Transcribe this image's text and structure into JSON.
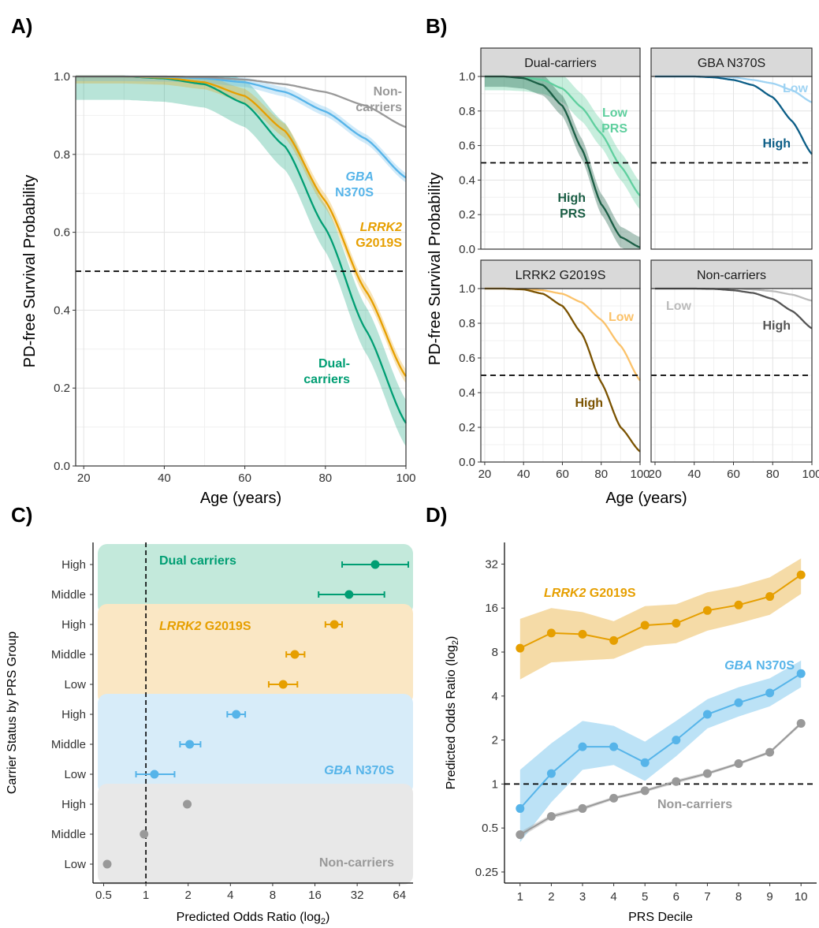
{
  "figure": {
    "colors": {
      "noncarriers": "#999999",
      "gba": "#56B4E9",
      "lrrk2": "#E69F00",
      "dual": "#009E73",
      "dual_high": "#1b5e45",
      "dual_low": "#5fcf9e",
      "gba_high": "#0b5d86",
      "gba_low": "#9fd3f3",
      "lrrk2_high": "#7a5200",
      "lrrk2_low": "#fbc26a",
      "non_high": "#555555",
      "non_low": "#bbbbbb"
    }
  },
  "chart_data": [
    {
      "panel": "A)",
      "type": "line",
      "xlabel": "Age (years)",
      "ylabel": "PD-free Survival Probability",
      "xlim": [
        18,
        100
      ],
      "ylim": [
        0,
        1
      ],
      "xticks": [
        "20",
        "40",
        "60",
        "80",
        "100"
      ],
      "yticks": [
        "0.0",
        "0.2",
        "0.4",
        "0.6",
        "0.8",
        "1.0"
      ],
      "reference_line": 0.5,
      "grid": true,
      "series": [
        {
          "key": "noncarriers",
          "label_lines": [
            "Non-",
            "carriers"
          ],
          "ages": [
            18,
            30,
            40,
            50,
            60,
            70,
            80,
            90,
            100
          ],
          "values": [
            1.0,
            1.0,
            1.0,
            0.998,
            0.992,
            0.98,
            0.96,
            0.925,
            0.87
          ],
          "band": 0.0
        },
        {
          "key": "gba",
          "label_lines": [
            "GBA",
            "N370S"
          ],
          "italic_first": true,
          "ages": [
            18,
            30,
            40,
            50,
            60,
            70,
            80,
            90,
            100
          ],
          "values": [
            1.0,
            1.0,
            0.999,
            0.995,
            0.985,
            0.96,
            0.91,
            0.84,
            0.74
          ],
          "band": 0.012
        },
        {
          "key": "lrrk2",
          "label_lines": [
            "LRRK2",
            "G2019S"
          ],
          "italic_first": true,
          "ages": [
            18,
            30,
            40,
            50,
            60,
            70,
            80,
            90,
            100
          ],
          "values": [
            1.0,
            1.0,
            0.997,
            0.985,
            0.95,
            0.86,
            0.68,
            0.45,
            0.23
          ],
          "band": 0.018
        },
        {
          "key": "dual",
          "label_lines": [
            "Dual-",
            "carriers"
          ],
          "ages": [
            18,
            30,
            40,
            50,
            60,
            70,
            80,
            90,
            100
          ],
          "values": [
            1.0,
            1.0,
            0.995,
            0.98,
            0.93,
            0.82,
            0.61,
            0.35,
            0.11
          ],
          "band": 0.06
        }
      ]
    },
    {
      "panel": "B)",
      "type": "line",
      "xlabel": "Age (years)",
      "ylabel": "PD-free Survival Probability",
      "xlim": [
        18,
        100
      ],
      "ylim": [
        0,
        1
      ],
      "xticks": [
        "20",
        "40",
        "60",
        "80",
        "100"
      ],
      "yticks": [
        "0.0",
        "0.2",
        "0.4",
        "0.6",
        "0.8",
        "1.0"
      ],
      "reference_line": 0.5,
      "facets": [
        {
          "title": "Dual-carriers",
          "series": [
            {
              "label_lines": [
                "Low",
                "PRS"
              ],
              "color_key": "dual_low",
              "ages": [
                20,
                30,
                40,
                50,
                60,
                70,
                80,
                90,
                100
              ],
              "values": [
                1.0,
                1.0,
                0.995,
                0.98,
                0.93,
                0.82,
                0.67,
                0.48,
                0.31
              ],
              "band": 0.08
            },
            {
              "label_lines": [
                "High",
                "PRS"
              ],
              "color_key": "dual_high",
              "ages": [
                20,
                30,
                40,
                50,
                60,
                70,
                80,
                90,
                100
              ],
              "values": [
                1.0,
                1.0,
                0.99,
                0.95,
                0.83,
                0.58,
                0.26,
                0.07,
                0.01
              ],
              "band": 0.06
            }
          ]
        },
        {
          "title": "GBA N370S",
          "series": [
            {
              "label_lines": [
                "Low"
              ],
              "color_key": "gba_low",
              "ages": [
                20,
                30,
                40,
                50,
                60,
                70,
                80,
                90,
                100
              ],
              "values": [
                1.0,
                1.0,
                1.0,
                1.0,
                0.995,
                0.98,
                0.96,
                0.92,
                0.85
              ],
              "band": 0.0
            },
            {
              "label_lines": [
                "High"
              ],
              "color_key": "gba_high",
              "ages": [
                20,
                30,
                40,
                50,
                60,
                70,
                80,
                90,
                100
              ],
              "values": [
                1.0,
                1.0,
                1.0,
                0.995,
                0.98,
                0.95,
                0.88,
                0.74,
                0.55
              ],
              "band": 0.0
            }
          ]
        },
        {
          "title": "LRRK2 G2019S",
          "series": [
            {
              "label_lines": [
                "Low"
              ],
              "color_key": "lrrk2_low",
              "ages": [
                20,
                30,
                40,
                50,
                60,
                70,
                80,
                90,
                100
              ],
              "values": [
                1.0,
                1.0,
                0.998,
                0.99,
                0.97,
                0.92,
                0.82,
                0.67,
                0.47
              ],
              "band": 0.0
            },
            {
              "label_lines": [
                "High"
              ],
              "color_key": "lrrk2_high",
              "ages": [
                20,
                30,
                40,
                50,
                60,
                70,
                80,
                90,
                100
              ],
              "values": [
                1.0,
                1.0,
                0.995,
                0.97,
                0.9,
                0.74,
                0.46,
                0.2,
                0.06
              ],
              "band": 0.0
            }
          ]
        },
        {
          "title": "Non-carriers",
          "series": [
            {
              "label_lines": [
                "Low"
              ],
              "color_key": "non_low",
              "ages": [
                20,
                30,
                40,
                50,
                60,
                70,
                80,
                90,
                100
              ],
              "values": [
                1.0,
                1.0,
                1.0,
                1.0,
                1.0,
                0.995,
                0.985,
                0.965,
                0.93
              ],
              "band": 0.0
            },
            {
              "label_lines": [
                "High"
              ],
              "color_key": "non_high",
              "ages": [
                20,
                30,
                40,
                50,
                60,
                70,
                80,
                90,
                100
              ],
              "values": [
                1.0,
                1.0,
                1.0,
                0.998,
                0.99,
                0.975,
                0.94,
                0.87,
                0.77
              ],
              "band": 0.0
            }
          ]
        }
      ]
    },
    {
      "panel": "C)",
      "type": "scatter",
      "xlabel": "Predicted Odds Ratio (log",
      "xlabel_sub": "2",
      "xlabel_end": ")",
      "ylabel": "Carrier Status by PRS Group",
      "x_scale": "log2",
      "xlim": [
        0.42,
        80
      ],
      "xticks": [
        {
          "v": 0.5,
          "t": "0.5"
        },
        {
          "v": 1,
          "t": "1"
        },
        {
          "v": 2,
          "t": "2"
        },
        {
          "v": 4,
          "t": "4"
        },
        {
          "v": 8,
          "t": "8"
        },
        {
          "v": 16,
          "t": "16"
        },
        {
          "v": 32,
          "t": "32"
        },
        {
          "v": 64,
          "t": "64"
        }
      ],
      "reference_line": 1,
      "categories": [
        "High",
        "Middle",
        "High",
        "Middle",
        "Low",
        "High",
        "Middle",
        "Low",
        "High",
        "Middle",
        "Low"
      ],
      "groups": [
        {
          "key": "dual",
          "label": "Dual carriers",
          "rows": [
            0,
            1
          ],
          "points": [
            {
              "or": 43,
              "lo": 25,
              "hi": 74
            },
            {
              "or": 28,
              "lo": 17,
              "hi": 50
            }
          ]
        },
        {
          "key": "lrrk2",
          "label_italic": "LRRK2",
          "label": " G2019S",
          "rows": [
            2,
            3,
            4
          ],
          "points": [
            {
              "or": 22,
              "lo": 19,
              "hi": 25
            },
            {
              "or": 11.5,
              "lo": 10,
              "hi": 13.5
            },
            {
              "or": 9.5,
              "lo": 7.5,
              "hi": 12
            }
          ]
        },
        {
          "key": "gba",
          "label_italic": "GBA",
          "label": " N370S",
          "rows": [
            5,
            6,
            7
          ],
          "points": [
            {
              "or": 4.4,
              "lo": 3.8,
              "hi": 5.1
            },
            {
              "or": 2.05,
              "lo": 1.75,
              "hi": 2.45
            },
            {
              "or": 1.15,
              "lo": 0.85,
              "hi": 1.6
            }
          ]
        },
        {
          "key": "noncarriers",
          "label": "Non-carriers",
          "rows": [
            8,
            9,
            10
          ],
          "points": [
            {
              "or": 1.97,
              "lo": 1.97,
              "hi": 1.97
            },
            {
              "or": 0.97,
              "lo": 0.97,
              "hi": 0.97
            },
            {
              "or": 0.53,
              "lo": 0.53,
              "hi": 0.53
            }
          ]
        }
      ]
    },
    {
      "panel": "D)",
      "type": "line",
      "xlabel": "PRS Decile",
      "ylabel": "Predicted Odds Ratio (log",
      "ylabel_sub": "2",
      "ylabel_end": ")",
      "y_scale": "log2",
      "ylim": [
        0.21,
        45
      ],
      "yticks": [
        {
          "v": 0.25,
          "t": "0.25"
        },
        {
          "v": 0.5,
          "t": "0.5"
        },
        {
          "v": 1,
          "t": "1"
        },
        {
          "v": 2,
          "t": "2"
        },
        {
          "v": 4,
          "t": "4"
        },
        {
          "v": 8,
          "t": "8"
        },
        {
          "v": 16,
          "t": "16"
        },
        {
          "v": 32,
          "t": "32"
        }
      ],
      "x": [
        1,
        2,
        3,
        4,
        5,
        6,
        7,
        8,
        9,
        10
      ],
      "reference_line": 1,
      "series": [
        {
          "key": "lrrk2",
          "label_italic": "LRRK2",
          "label": " G2019S",
          "values": [
            8.5,
            10.8,
            10.6,
            9.6,
            12.2,
            12.6,
            15.4,
            16.8,
            19.2,
            27
          ],
          "lo": [
            5.2,
            6.8,
            7.0,
            7.2,
            8.8,
            9.2,
            11.2,
            12.6,
            14.4,
            20
          ],
          "hi": [
            13.5,
            16.0,
            15.0,
            13.0,
            16.5,
            17.0,
            20.5,
            22.5,
            26.0,
            35
          ]
        },
        {
          "key": "gba",
          "label_italic": "GBA",
          "label": " N370S",
          "values": [
            0.68,
            1.18,
            1.8,
            1.8,
            1.4,
            2.0,
            3.0,
            3.6,
            4.2,
            5.7
          ],
          "lo": [
            0.4,
            0.75,
            1.25,
            1.35,
            1.05,
            1.55,
            2.4,
            2.9,
            3.4,
            4.6
          ],
          "hi": [
            1.25,
            1.9,
            2.7,
            2.5,
            1.95,
            2.7,
            3.8,
            4.6,
            5.3,
            7.0
          ]
        },
        {
          "key": "noncarriers",
          "label": "Non-carriers",
          "values": [
            0.45,
            0.6,
            0.68,
            0.8,
            0.9,
            1.04,
            1.18,
            1.38,
            1.65,
            2.6
          ],
          "lo": [
            0.43,
            0.58,
            0.66,
            0.78,
            0.88,
            1.01,
            1.15,
            1.35,
            1.61,
            2.53
          ],
          "hi": [
            0.47,
            0.62,
            0.7,
            0.82,
            0.92,
            1.07,
            1.21,
            1.41,
            1.69,
            2.67
          ]
        }
      ]
    }
  ]
}
